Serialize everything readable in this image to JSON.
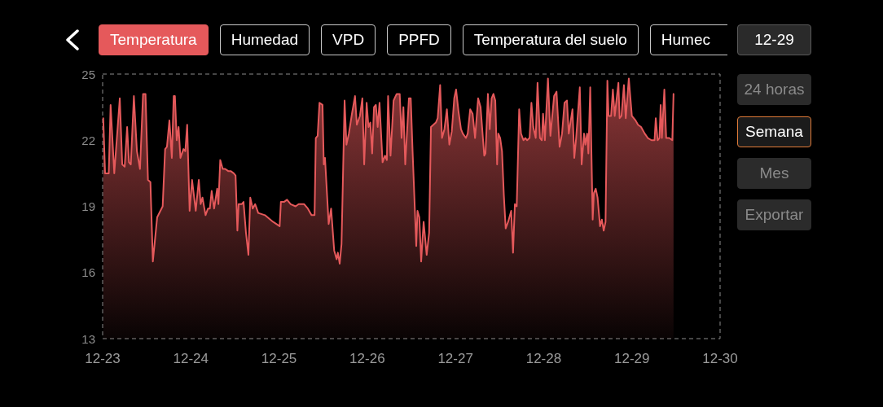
{
  "chart_data": {
    "type": "area",
    "title": "Temperatura",
    "annotations": [
      "Humedad",
      "VPD",
      "PPFD",
      "Temperatura del suelo",
      "Humec",
      "12-29",
      "24 horas",
      "Semana",
      "Mes",
      "Exportar"
    ],
    "color": "#e5595b",
    "xlim": [
      "--12-23",
      "--12-30"
    ],
    "xticks": [
      {
        "value": "--12-23",
        "label": "12-23"
      },
      {
        "value": "--12-24",
        "label": "12-24"
      },
      {
        "value": "--12-25",
        "label": "12-25"
      },
      {
        "value": "--12-26",
        "label": "12-26"
      },
      {
        "value": "--12-27",
        "label": "12-27"
      },
      {
        "value": "--12-28",
        "label": "12-28"
      },
      {
        "value": "--12-29",
        "label": "12-29"
      },
      {
        "value": "--12-30",
        "label": "12-30"
      }
    ],
    "ylim": [
      13,
      25
    ],
    "yticks": [
      13,
      16,
      19,
      22,
      25
    ],
    "x": [
      "--12-23T00:10",
      "--12-23T00:40",
      "--12-23T01:40",
      "--12-23T02:10",
      "--12-23T03:10",
      "--12-23T04:40",
      "--12-23T05:20",
      "--12-23T06:00",
      "--12-23T06:40",
      "--12-23T07:10",
      "--12-23T07:40",
      "--12-23T08:30",
      "--12-23T09:20",
      "--12-23T10:10",
      "--12-23T11:00",
      "--12-23T11:40",
      "--12-23T12:20",
      "--12-23T13:00",
      "--12-23T13:40",
      "--12-23T14:50",
      "--12-23T16:20",
      "--12-23T17:00",
      "--12-23T17:30",
      "--12-23T18:10",
      "--12-23T18:50",
      "--12-23T19:20",
      "--12-23T19:40",
      "--12-23T20:10",
      "--12-23T20:40",
      "--12-23T21:10",
      "--12-23T22:00",
      "--12-23T22:30",
      "--12-23T23:00",
      "--12-23T23:40",
      "--12-24T00:20",
      "--12-24T01:20",
      "--12-24T02:10",
      "--12-24T02:40",
      "--12-24T03:10",
      "--12-24T04:00",
      "--12-24T04:40",
      "--12-24T05:10",
      "--12-24T05:40",
      "--12-24T06:20",
      "--12-24T07:10",
      "--12-24T07:30",
      "--12-24T08:00",
      "--12-24T08:40",
      "--12-24T09:20",
      "--12-24T10:10",
      "--12-24T10:50",
      "--12-24T11:40",
      "--12-24T12:10",
      "--12-24T12:40",
      "--12-24T13:00",
      "--12-24T13:50",
      "--12-24T14:20",
      "--12-24T15:00",
      "--12-24T15:40",
      "--12-24T16:10",
      "--12-24T16:50",
      "--12-24T17:30",
      "--12-24T18:20",
      "--12-24T20:10",
      "--12-24T22:20",
      "--12-25T00:10",
      "--12-25T00:30",
      "--12-25T01:20",
      "--12-25T02:10",
      "--12-25T03:10",
      "--12-25T04:30",
      "--12-25T05:20",
      "--12-25T06:50",
      "--12-25T07:50",
      "--12-25T08:50",
      "--12-25T09:40",
      "--12-25T10:00",
      "--12-25T10:30",
      "--12-25T11:00",
      "--12-25T11:50",
      "--12-25T12:10",
      "--12-25T12:30",
      "--12-25T13:30",
      "--12-25T14:10",
      "--12-25T15:00",
      "--12-25T15:40",
      "--12-25T16:00",
      "--12-25T16:30",
      "--12-25T17:00",
      "--12-25T17:50",
      "--12-25T18:20",
      "--12-25T19:00",
      "--12-25T19:50",
      "--12-25T20:40",
      "--12-25T21:10",
      "--12-25T22:00",
      "--12-25T22:40",
      "--12-25T23:10",
      "--12-25T23:50",
      "--12-26T00:20",
      "--12-26T00:50",
      "--12-26T01:20",
      "--12-26T01:50",
      "--12-26T02:20",
      "--12-26T02:50",
      "--12-26T03:20",
      "--12-26T04:10",
      "--12-26T04:50",
      "--12-26T05:20",
      "--12-26T05:40",
      "--12-26T06:20",
      "--12-26T07:10",
      "--12-26T08:00",
      "--12-26T08:50",
      "--12-26T09:20",
      "--12-26T09:50",
      "--12-26T10:20",
      "--12-26T11:20",
      "--12-26T11:50",
      "--12-26T12:20",
      "--12-26T13:20",
      "--12-26T13:40",
      "--12-26T14:10",
      "--12-26T14:40",
      "--12-26T15:20",
      "--12-26T16:10",
      "--12-26T16:50",
      "--12-26T17:20",
      "--12-26T18:40",
      "--12-26T19:10",
      "--12-26T19:50",
      "--12-26T20:20",
      "--12-26T21:00",
      "--12-26T21:40",
      "--12-26T22:20",
      "--12-26T23:00",
      "--12-26T23:40",
      "--12-27T00:10",
      "--12-27T00:50",
      "--12-27T01:30",
      "--12-27T02:00",
      "--12-27T02:50",
      "--12-27T03:20",
      "--12-27T04:00",
      "--12-27T04:40",
      "--12-27T05:20",
      "--12-27T06:10",
      "--12-27T06:50",
      "--12-27T07:50",
      "--12-27T08:10",
      "--12-27T08:50",
      "--12-27T09:20",
      "--12-27T09:50",
      "--12-27T10:20",
      "--12-27T10:50",
      "--12-27T11:20",
      "--12-27T11:40",
      "--12-27T12:10",
      "--12-27T12:40",
      "--12-27T13:10",
      "--12-27T13:40",
      "--12-27T14:20",
      "--12-27T15:10",
      "--12-27T15:40",
      "--12-27T16:10",
      "--12-27T16:40",
      "--12-27T17:20",
      "--12-27T17:50",
      "--12-27T18:30",
      "--12-27T19:00",
      "--12-27T19:30",
      "--12-27T20:10",
      "--12-27T20:40",
      "--12-27T21:10",
      "--12-27T21:50",
      "--12-27T22:20",
      "--12-27T23:00",
      "--12-27T23:30",
      "--12-27T23:50",
      "--12-28T00:20",
      "--12-28T01:10",
      "--12-28T01:50",
      "--12-28T02:50",
      "--12-28T03:30",
      "--12-28T04:20",
      "--12-28T05:00",
      "--12-28T05:40",
      "--12-28T06:20",
      "--12-28T06:50",
      "--12-28T07:50",
      "--12-28T08:20",
      "--12-28T08:50",
      "--12-28T09:50",
      "--12-28T10:20",
      "--12-28T11:00",
      "--12-28T11:20",
      "--12-28T11:50",
      "--12-28T12:10",
      "--12-28T12:40",
      "--12-28T13:20",
      "--12-28T13:40",
      "--12-28T14:10",
      "--12-28T14:40",
      "--12-28T15:20",
      "--12-28T15:50",
      "--12-28T16:20",
      "--12-28T16:50",
      "--12-28T17:20",
      "--12-28T17:40",
      "--12-28T18:20",
      "--12-28T18:50",
      "--12-28T19:20",
      "--12-28T20:20",
      "--12-28T20:40",
      "--12-28T21:10",
      "--12-28T21:50",
      "--12-28T22:20",
      "--12-28T23:10",
      "--12-29T00:00",
      "--12-29T01:00",
      "--12-29T01:40",
      "--12-29T02:30",
      "--12-29T03:30",
      "--12-29T04:20",
      "--12-29T05:20",
      "--12-29T06:10",
      "--12-29T06:30",
      "--12-29T07:00",
      "--12-29T07:30",
      "--12-29T07:50",
      "--12-29T08:10",
      "--12-29T08:50",
      "--12-29T09:20",
      "--12-29T10:10",
      "--12-29T11:00",
      "--12-29T11:20"
    ],
    "values": [
      23.0,
      20.5,
      20.5,
      23.6,
      20.5,
      23.9,
      20.9,
      20.8,
      22.6,
      21.0,
      20.9,
      24.0,
      21.5,
      20.7,
      24.1,
      24.1,
      20.2,
      20.1,
      16.5,
      18.5,
      19.0,
      21.6,
      21.7,
      22.9,
      21.2,
      24.0,
      24.0,
      22.0,
      22.6,
      21.2,
      21.6,
      21.5,
      22.7,
      18.8,
      20.2,
      18.8,
      20.2,
      19.1,
      19.4,
      18.6,
      18.9,
      18.9,
      19.7,
      18.9,
      19.8,
      19.1,
      21.1,
      20.7,
      20.7,
      20.6,
      20.6,
      20.5,
      20.4,
      17.9,
      19.1,
      19.1,
      19.2,
      17.8,
      16.8,
      19.4,
      18.9,
      19.1,
      18.7,
      18.6,
      18.3,
      18.1,
      19.2,
      19.2,
      19.3,
      19.1,
      19.0,
      19.1,
      19.1,
      18.9,
      18.6,
      18.6,
      22.1,
      22.2,
      23.7,
      23.6,
      20.9,
      21.2,
      18.2,
      18.9,
      17.0,
      16.6,
      16.9,
      16.4,
      17.3,
      23.8,
      21.8,
      22.3,
      23.2,
      24.0,
      22.7,
      23.1,
      23.9,
      20.9,
      23.7,
      22.6,
      22.8,
      21.4,
      23.5,
      23.6,
      22.6,
      23.7,
      21.0,
      21.3,
      21.1,
      24.0,
      21.3,
      23.8,
      24.1,
      24.1,
      22.1,
      23.5,
      20.9,
      23.9,
      23.9,
      21.5,
      17.2,
      18.8,
      18.5,
      16.5,
      18.3,
      16.8,
      17.8,
      22.6,
      22.8,
      23.0,
      24.5,
      22.1,
      22.5,
      23.4,
      21.8,
      22.4,
      23.9,
      24.3,
      23.3,
      22.5,
      22.3,
      22.1,
      22.3,
      23.4,
      23.2,
      22.1,
      23.9,
      23.5,
      21.3,
      21.4,
      24.1,
      22.5,
      23.9,
      24.1,
      23.8,
      20.9,
      22.3,
      22.1,
      21.5,
      19.5,
      18.0,
      18.3,
      18.8,
      16.9,
      19.1,
      19.0,
      23.4,
      22.3,
      22.0,
      22.1,
      22.0,
      22.1,
      23.7,
      22.6,
      22.1,
      24.6,
      22.1,
      22.0,
      23.2,
      22.0,
      24.8,
      22.2,
      24.0,
      24.2,
      21.7,
      22.3,
      23.7,
      23.8,
      22.3,
      23.4,
      21.2,
      22.1,
      24.4,
      20.9,
      22.3,
      21.8,
      22.3,
      21.4,
      24.4,
      18.4,
      19.6,
      19.8,
      19.4,
      18.1,
      18.4,
      17.9,
      18.3,
      24.7,
      23.1,
      23.1,
      24.3,
      23.1,
      24.6,
      23.0,
      23.1,
      24.5,
      23.0,
      24.8,
      23.1,
      22.9,
      22.7,
      22.6,
      22.3,
      22.1,
      22.0,
      22.0,
      23.0,
      22.0,
      22.1,
      23.6,
      22.1,
      24.3,
      22.1,
      22.1,
      22.0,
      24.1
    ]
  }
}
